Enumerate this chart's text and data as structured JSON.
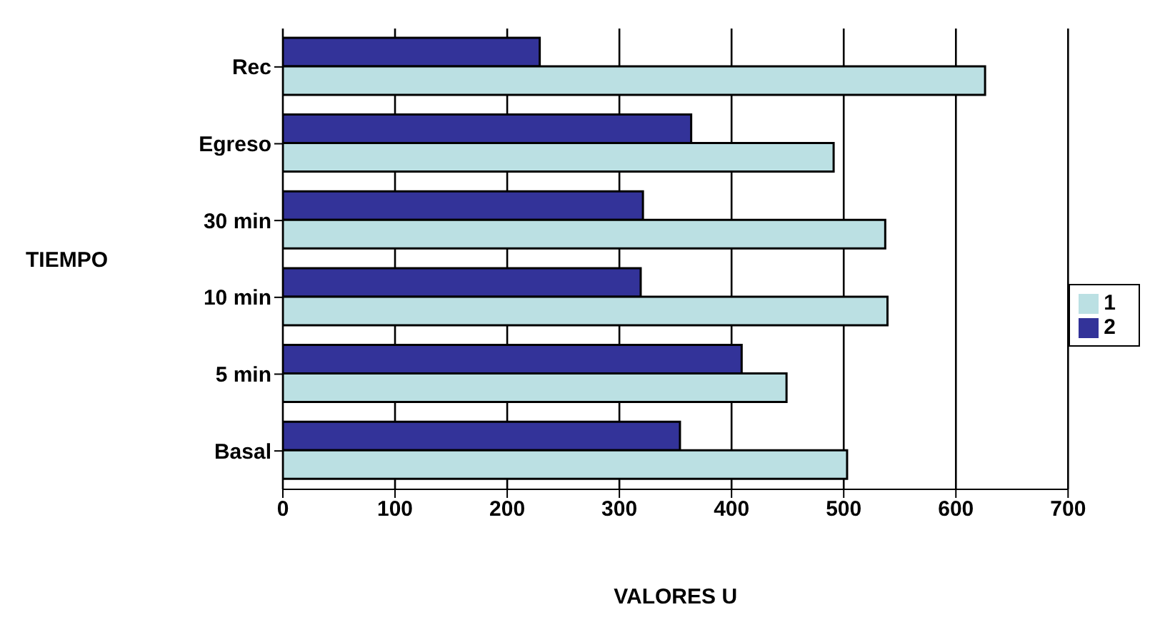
{
  "chart_data": {
    "type": "bar",
    "orientation": "horizontal",
    "xlabel": "VALORES U",
    "ylabel": "TIEMPO",
    "categories": [
      "Rec",
      "Egreso",
      "30 min",
      "10 min",
      "5 min",
      "Basal"
    ],
    "series": [
      {
        "name": "2",
        "color": "#333399",
        "values": [
          229,
          364,
          321,
          319,
          409,
          354
        ]
      },
      {
        "name": "1",
        "color": "#bbe0e3",
        "values": [
          626,
          491,
          537,
          539,
          449,
          503
        ]
      }
    ],
    "xlim": [
      0,
      700
    ],
    "xticks": [
      0,
      100,
      200,
      300,
      400,
      500,
      600,
      700
    ],
    "grid": "x",
    "legend": "right"
  }
}
